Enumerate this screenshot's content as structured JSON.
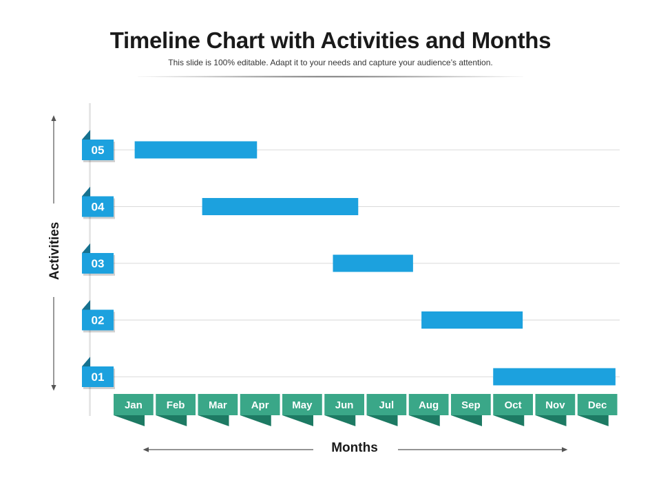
{
  "title": "Timeline Chart with Activities and Months",
  "subtitle": "This slide is 100% editable. Adapt it to your needs and capture your audience’s attention.",
  "chart_data": {
    "type": "bar",
    "orientation": "horizontal-gantt",
    "xlabel": "Months",
    "ylabel": "Activities",
    "categories": [
      "Jan",
      "Feb",
      "Mar",
      "Apr",
      "May",
      "Jun",
      "Jul",
      "Aug",
      "Sep",
      "Oct",
      "Nov",
      "Dec"
    ],
    "activities": [
      {
        "label": "05",
        "start": 0.5,
        "end": 3.4
      },
      {
        "label": "04",
        "start": 2.1,
        "end": 5.8
      },
      {
        "label": "03",
        "start": 5.2,
        "end": 7.1
      },
      {
        "label": "02",
        "start": 7.3,
        "end": 9.7
      },
      {
        "label": "01",
        "start": 9.0,
        "end": 11.9
      }
    ],
    "xlim": [
      0,
      12
    ],
    "grid": true,
    "colors": {
      "bar": "#1ca1de",
      "activity_tag": "#1ca1de",
      "activity_tag_fold": "#16718f",
      "month_tab": "#3aa788",
      "month_tab_fold": "#1d7a63",
      "grid": "#d9d9d9",
      "axis_arrow": "#555555"
    }
  }
}
